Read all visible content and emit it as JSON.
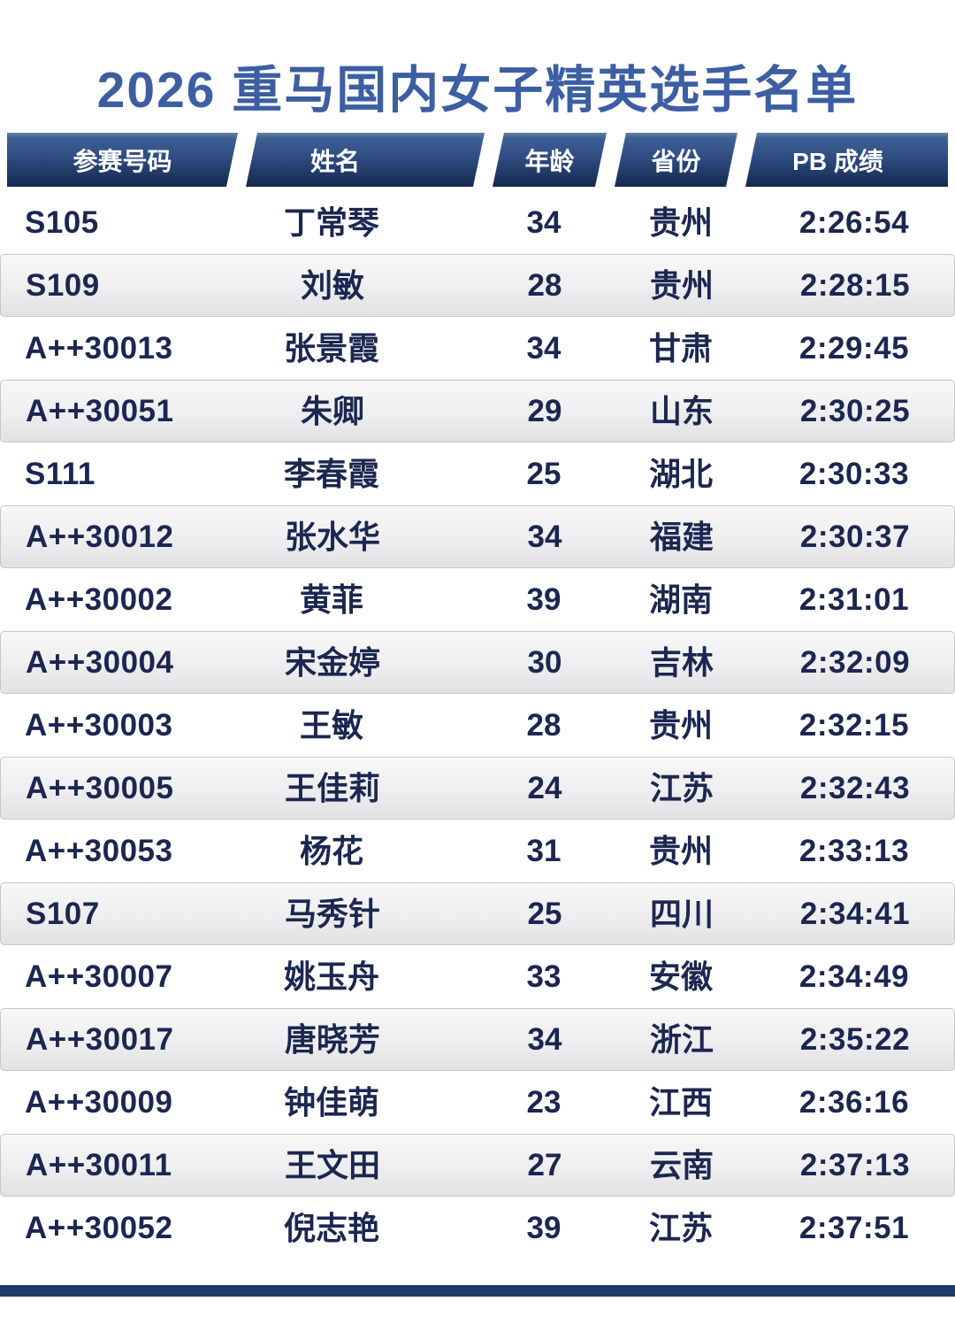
{
  "page": {
    "title": "2026 重马国内女子精英选手名单"
  },
  "colors": {
    "title_blue": "#3c5ea2",
    "header_gradient_top": "#3e6095",
    "header_gradient_bottom": "#16294d",
    "row_text_navy": "#1b2750",
    "stripe_gray": "#e2e1e3",
    "stripe_border": "#c7c7c7",
    "footer_bar_navy": "#1e3a66"
  },
  "table": {
    "columns": [
      "参赛号码",
      "姓名",
      "年龄",
      "省份",
      "PB 成绩"
    ],
    "rows": [
      {
        "bib": "S105",
        "name": "丁常琴",
        "age": "34",
        "province": "贵州",
        "pb": "2:26:54"
      },
      {
        "bib": "S109",
        "name": "刘敏",
        "age": "28",
        "province": "贵州",
        "pb": "2:28:15"
      },
      {
        "bib": "A++30013",
        "name": "张景霞",
        "age": "34",
        "province": "甘肃",
        "pb": "2:29:45"
      },
      {
        "bib": "A++30051",
        "name": "朱卿",
        "age": "29",
        "province": "山东",
        "pb": "2:30:25"
      },
      {
        "bib": "S111",
        "name": "李春霞",
        "age": "25",
        "province": "湖北",
        "pb": "2:30:33"
      },
      {
        "bib": "A++30012",
        "name": "张水华",
        "age": "34",
        "province": "福建",
        "pb": "2:30:37"
      },
      {
        "bib": "A++30002",
        "name": "黄菲",
        "age": "39",
        "province": "湖南",
        "pb": "2:31:01"
      },
      {
        "bib": "A++30004",
        "name": "宋金婷",
        "age": "30",
        "province": "吉林",
        "pb": "2:32:09"
      },
      {
        "bib": "A++30003",
        "name": "王敏",
        "age": "28",
        "province": "贵州",
        "pb": "2:32:15"
      },
      {
        "bib": "A++30005",
        "name": "王佳莉",
        "age": "24",
        "province": "江苏",
        "pb": "2:32:43"
      },
      {
        "bib": "A++30053",
        "name": "杨花",
        "age": "31",
        "province": "贵州",
        "pb": "2:33:13"
      },
      {
        "bib": "S107",
        "name": "马秀针",
        "age": "25",
        "province": "四川",
        "pb": "2:34:41"
      },
      {
        "bib": "A++30007",
        "name": "姚玉舟",
        "age": "33",
        "province": "安徽",
        "pb": "2:34:49"
      },
      {
        "bib": "A++30017",
        "name": "唐晓芳",
        "age": "34",
        "province": "浙江",
        "pb": "2:35:22"
      },
      {
        "bib": "A++30009",
        "name": "钟佳萌",
        "age": "23",
        "province": "江西",
        "pb": "2:36:16"
      },
      {
        "bib": "A++30011",
        "name": "王文田",
        "age": "27",
        "province": "云南",
        "pb": "2:37:13"
      },
      {
        "bib": "A++30052",
        "name": "倪志艳",
        "age": "39",
        "province": "江苏",
        "pb": "2:37:51"
      }
    ]
  }
}
